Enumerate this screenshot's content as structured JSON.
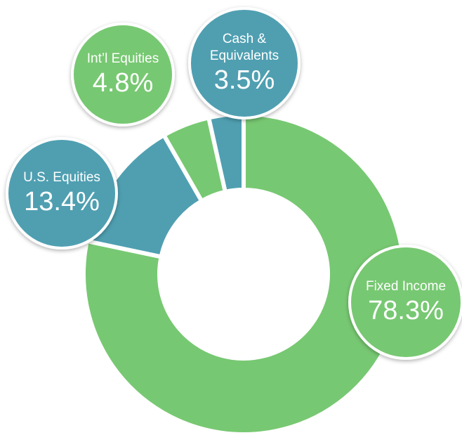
{
  "chart_data": {
    "type": "donut",
    "categories": [
      "Fixed Income",
      "U.S. Equities",
      "Int’l Equities",
      "Cash & Equivalents"
    ],
    "values": [
      78.3,
      13.4,
      4.8,
      3.5
    ],
    "value_labels": [
      "78.3%",
      "13.4%",
      "4.8%",
      "3.5%"
    ],
    "colors": [
      "#77c872",
      "#4f9fb1",
      "#77c872",
      "#4f9fb1"
    ]
  }
}
